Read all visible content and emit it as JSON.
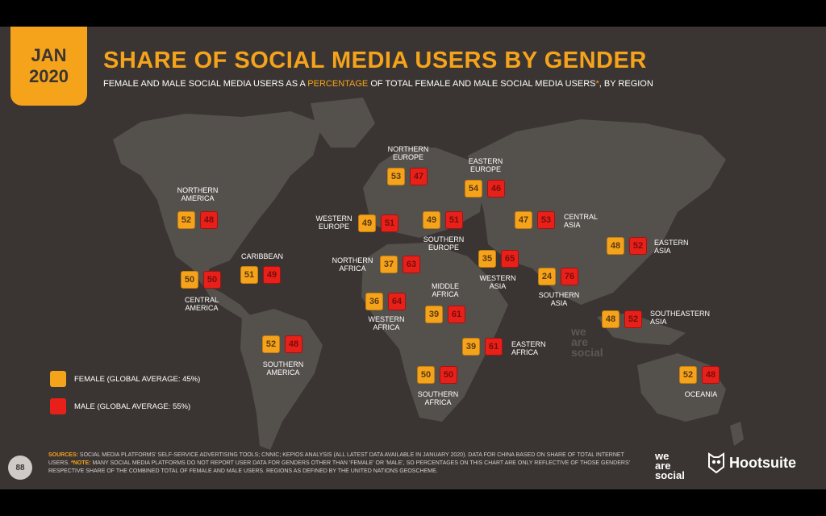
{
  "header": {
    "date_line1": "JAN",
    "date_line2": "2020",
    "title": "SHARE OF SOCIAL MEDIA USERS BY GENDER",
    "subtitle_pre": "FEMALE AND MALE SOCIAL MEDIA USERS AS A ",
    "subtitle_hl": "PERCENTAGE",
    "subtitle_post": " OF TOTAL FEMALE AND MALE SOCIAL MEDIA USERS",
    "subtitle_star": "*",
    "subtitle_end": ", BY REGION"
  },
  "legend": {
    "female": "FEMALE (GLOBAL AVERAGE: 45%)",
    "male": "MALE (GLOBAL AVERAGE: 55%)"
  },
  "colors": {
    "female": "#f6a31c",
    "male": "#e8201a",
    "background": "#3a3532",
    "land": "#54504c"
  },
  "chart_data": {
    "type": "table",
    "title": "SHARE OF SOCIAL MEDIA USERS BY GENDER",
    "series": [
      {
        "name": "FEMALE (GLOBAL AVERAGE: 45%)"
      },
      {
        "name": "MALE (GLOBAL AVERAGE: 55%)"
      }
    ],
    "regions": [
      {
        "id": "northern-america",
        "name": "NORTHERN AMERICA",
        "female": 52,
        "male": 48
      },
      {
        "id": "central-america",
        "name": "CENTRAL AMERICA",
        "female": 50,
        "male": 50
      },
      {
        "id": "caribbean",
        "name": "CARIBBEAN",
        "female": 51,
        "male": 49
      },
      {
        "id": "southern-america",
        "name": "SOUTHERN AMERICA",
        "female": 52,
        "male": 48
      },
      {
        "id": "northern-europe",
        "name": "NORTHERN EUROPE",
        "female": 53,
        "male": 47
      },
      {
        "id": "western-europe",
        "name": "WESTERN EUROPE",
        "female": 49,
        "male": 51
      },
      {
        "id": "southern-europe",
        "name": "SOUTHERN EUROPE",
        "female": 49,
        "male": 51
      },
      {
        "id": "eastern-europe",
        "name": "EASTERN EUROPE",
        "female": 54,
        "male": 46
      },
      {
        "id": "northern-africa",
        "name": "NORTHERN AFRICA",
        "female": 37,
        "male": 63
      },
      {
        "id": "western-africa",
        "name": "WESTERN AFRICA",
        "female": 36,
        "male": 64
      },
      {
        "id": "middle-africa",
        "name": "MIDDLE AFRICA",
        "female": 39,
        "male": 61
      },
      {
        "id": "eastern-africa",
        "name": "EASTERN AFRICA",
        "female": 39,
        "male": 61
      },
      {
        "id": "southern-africa",
        "name": "SOUTHERN AFRICA",
        "female": 50,
        "male": 50
      },
      {
        "id": "western-asia",
        "name": "WESTERN ASIA",
        "female": 35,
        "male": 65
      },
      {
        "id": "central-asia",
        "name": "CENTRAL ASIA",
        "female": 47,
        "male": 53
      },
      {
        "id": "southern-asia",
        "name": "SOUTHERN ASIA",
        "female": 24,
        "male": 76
      },
      {
        "id": "eastern-asia",
        "name": "EASTERN ASIA",
        "female": 48,
        "male": 52
      },
      {
        "id": "southeastern-asia",
        "name": "SOUTHEASTERN ASIA",
        "female": 48,
        "male": 52
      },
      {
        "id": "oceania",
        "name": "OCEANIA",
        "female": 52,
        "male": 48
      }
    ]
  },
  "footer": {
    "page_number": "88",
    "sources_label": "SOURCES:",
    "sources_text": " SOCIAL MEDIA PLATFORMS' SELF-SERVICE ADVERTISING TOOLS; CNNIC; KEPIOS ANALYSIS (ALL LATEST DATA AVAILABLE IN JANUARY 2020). DATA FOR CHINA BASED ON SHARE OF TOTAL INTERNET USERS. ",
    "note_label": "*NOTE:",
    "note_text": " MANY SOCIAL MEDIA PLATFORMS DO NOT REPORT USER DATA FOR GENDERS OTHER THAN 'FEMALE' OR 'MALE', SO PERCENTAGES ON THIS CHART ARE ONLY REFLECTIVE OF THOSE GENDERS' RESPECTIVE SHARE OF THE COMBINED TOTAL OF FEMALE AND MALE USERS. REGIONS AS DEFINED BY THE UNITED NATIONS GEOSCHEME.",
    "logo_we": "we",
    "logo_are": "are",
    "logo_social": "social",
    "hootsuite": "Hootsuite"
  },
  "watermark": {
    "line1": "we",
    "line2": "are",
    "line3": "social"
  }
}
